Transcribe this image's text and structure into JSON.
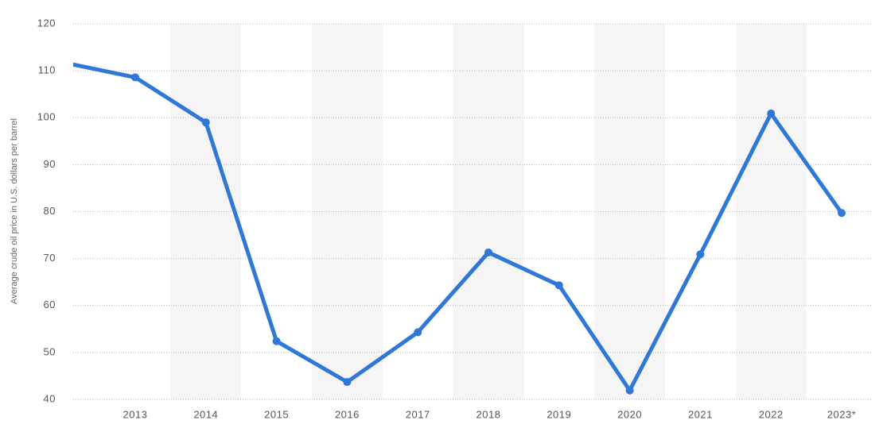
{
  "chart_data": {
    "type": "line",
    "y_axis_label": "Average crude oil price in U.S. dollars per barrel",
    "categories": [
      null,
      "2013",
      "2014",
      "2015",
      "2016",
      "2017",
      "2018",
      "2019",
      "2020",
      "2021",
      "2022",
      "2023*"
    ],
    "series": [
      {
        "name": "Average crude oil price",
        "color": "#2f78d8",
        "values": [
          111.7,
          108.6,
          99,
          52.4,
          43.7,
          54.3,
          71.3,
          64.3,
          41.9,
          70.9,
          100.9,
          79.7
        ]
      }
    ],
    "ylim": [
      40,
      120
    ],
    "yticks": [
      40,
      50,
      60,
      70,
      80,
      90,
      100,
      110,
      120
    ],
    "grid": true,
    "legend": false
  }
}
